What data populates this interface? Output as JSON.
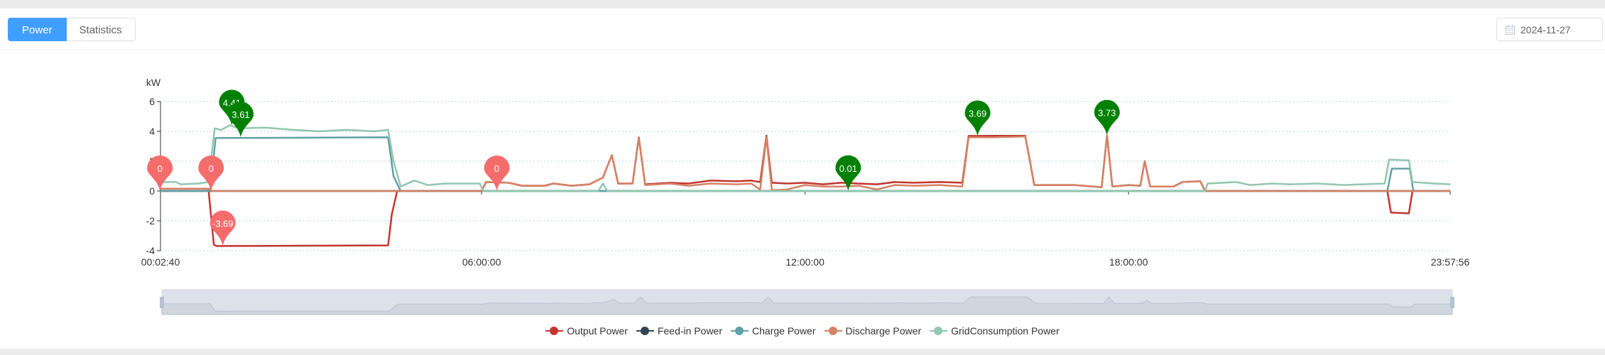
{
  "tabs": [
    {
      "label": "Power",
      "active": true
    },
    {
      "label": "Statistics",
      "active": false
    }
  ],
  "date_picker": {
    "value": "2024-11-27",
    "icon": "calendar-icon"
  },
  "chart_data": {
    "type": "line",
    "ylabel": "kW",
    "ylim": [
      -4,
      6
    ],
    "yticks": [
      6,
      4,
      2,
      0,
      -2,
      -4
    ],
    "xlim": [
      "00:02:40",
      "23:57:56"
    ],
    "xticks": [
      "00:02:40",
      "06:00:00",
      "12:00:00",
      "18:00:00",
      "23:57:56"
    ],
    "grid": true,
    "legend_position": "bottom",
    "data_zoom_slider": true,
    "series": [
      {
        "name": "Output Power",
        "color": "#c23531",
        "points": [
          [
            "00:02",
            0.15
          ],
          [
            "00:56",
            0.15
          ],
          [
            "01:02",
            -3.6
          ],
          [
            "01:05",
            -3.69
          ],
          [
            "04:16",
            -3.65
          ],
          [
            "04:20",
            -1.6
          ],
          [
            "04:26",
            0
          ],
          [
            "06:00",
            0
          ],
          [
            "06:05",
            0.6
          ],
          [
            "06:30",
            0.55
          ],
          [
            "06:45",
            0.35
          ],
          [
            "07:10",
            0.35
          ],
          [
            "07:20",
            0.5
          ],
          [
            "07:40",
            0.35
          ],
          [
            "08:00",
            0.45
          ],
          [
            "08:15",
            0.9
          ],
          [
            "08:25",
            2.4
          ],
          [
            "08:32",
            0.5
          ],
          [
            "08:48",
            0.5
          ],
          [
            "08:55",
            3.6
          ],
          [
            "09:02",
            0.45
          ],
          [
            "09:30",
            0.55
          ],
          [
            "09:50",
            0.5
          ],
          [
            "10:15",
            0.7
          ],
          [
            "10:45",
            0.65
          ],
          [
            "11:00",
            0.7
          ],
          [
            "11:10",
            0.6
          ],
          [
            "11:17",
            3.7
          ],
          [
            "11:23",
            0.55
          ],
          [
            "11:40",
            0.5
          ],
          [
            "12:00",
            0.55
          ],
          [
            "12:20",
            0.45
          ],
          [
            "12:40",
            0.55
          ],
          [
            "13:00",
            0.5
          ],
          [
            "13:20",
            0.45
          ],
          [
            "13:40",
            0.6
          ],
          [
            "14:00",
            0.55
          ],
          [
            "14:30",
            0.6
          ],
          [
            "14:55",
            0.55
          ],
          [
            "15:02",
            3.69
          ],
          [
            "15:30",
            3.7
          ],
          [
            "16:05",
            3.7
          ],
          [
            "16:10",
            2.1
          ],
          [
            "16:15",
            0.4
          ],
          [
            "17:00",
            0.4
          ],
          [
            "17:30",
            0.25
          ],
          [
            "17:36",
            3.73
          ],
          [
            "17:42",
            0.3
          ],
          [
            "18:00",
            0.4
          ],
          [
            "18:13",
            0.35
          ],
          [
            "18:18",
            2.0
          ],
          [
            "18:24",
            0.3
          ],
          [
            "18:50",
            0.3
          ],
          [
            "19:00",
            0.6
          ],
          [
            "19:20",
            0.65
          ],
          [
            "19:25",
            0
          ],
          [
            "22:48",
            0
          ],
          [
            "22:52",
            -1.45
          ],
          [
            "23:12",
            -1.5
          ],
          [
            "23:16",
            0
          ],
          [
            "23:58",
            0
          ]
        ]
      },
      {
        "name": "Feed-in Power",
        "color": "#2f4554",
        "points": [
          [
            "00:02",
            0
          ],
          [
            "23:58",
            0
          ]
        ]
      },
      {
        "name": "Charge Power",
        "color": "#61a0a8",
        "points": [
          [
            "00:02",
            0
          ],
          [
            "00:58",
            0
          ],
          [
            "01:04",
            3.55
          ],
          [
            "04:16",
            3.6
          ],
          [
            "04:22",
            1.0
          ],
          [
            "04:30",
            0
          ],
          [
            "22:48",
            0
          ],
          [
            "22:53",
            1.5
          ],
          [
            "23:13",
            1.5
          ],
          [
            "23:17",
            0
          ],
          [
            "23:58",
            0
          ]
        ]
      },
      {
        "name": "Discharge Power",
        "color": "#d48265",
        "points": [
          [
            "00:02",
            0.15
          ],
          [
            "00:56",
            0.15
          ],
          [
            "01:00",
            0
          ],
          [
            "06:00",
            0
          ],
          [
            "06:05",
            0.6
          ],
          [
            "06:30",
            0.55
          ],
          [
            "06:45",
            0.35
          ],
          [
            "07:10",
            0.35
          ],
          [
            "07:20",
            0.5
          ],
          [
            "07:40",
            0.35
          ],
          [
            "08:00",
            0.45
          ],
          [
            "08:15",
            0.9
          ],
          [
            "08:25",
            2.4
          ],
          [
            "08:32",
            0.5
          ],
          [
            "08:48",
            0.5
          ],
          [
            "08:55",
            3.6
          ],
          [
            "09:02",
            0.4
          ],
          [
            "09:30",
            0.5
          ],
          [
            "09:50",
            0.35
          ],
          [
            "10:15",
            0.5
          ],
          [
            "10:45",
            0.45
          ],
          [
            "11:00",
            0.5
          ],
          [
            "11:10",
            0.1
          ],
          [
            "11:17",
            3.6
          ],
          [
            "11:23",
            0.05
          ],
          [
            "11:40",
            0.1
          ],
          [
            "12:00",
            0.4
          ],
          [
            "12:20",
            0.3
          ],
          [
            "12:40",
            0.3
          ],
          [
            "13:00",
            0.35
          ],
          [
            "13:20",
            0.1
          ],
          [
            "13:40",
            0.4
          ],
          [
            "14:00",
            0.35
          ],
          [
            "14:30",
            0.4
          ],
          [
            "14:55",
            0.3
          ],
          [
            "15:02",
            3.6
          ],
          [
            "15:30",
            3.6
          ],
          [
            "16:05",
            3.65
          ],
          [
            "16:10",
            2.1
          ],
          [
            "16:15",
            0.4
          ],
          [
            "17:00",
            0.4
          ],
          [
            "17:30",
            0.25
          ],
          [
            "17:36",
            3.73
          ],
          [
            "17:42",
            0.3
          ],
          [
            "18:00",
            0.4
          ],
          [
            "18:13",
            0.35
          ],
          [
            "18:18",
            2.0
          ],
          [
            "18:24",
            0.3
          ],
          [
            "18:50",
            0.3
          ],
          [
            "19:00",
            0.6
          ],
          [
            "19:20",
            0.65
          ],
          [
            "19:25",
            0
          ],
          [
            "23:58",
            0
          ]
        ]
      },
      {
        "name": "GridConsumption Power",
        "color": "#91c7ae",
        "points": [
          [
            "00:02",
            0.6
          ],
          [
            "00:20",
            0.6
          ],
          [
            "00:25",
            0.45
          ],
          [
            "00:45",
            0.5
          ],
          [
            "00:56",
            0.6
          ],
          [
            "01:03",
            4.2
          ],
          [
            "01:10",
            4.1
          ],
          [
            "01:20",
            4.41
          ],
          [
            "01:30",
            4.2
          ],
          [
            "02:00",
            4.25
          ],
          [
            "02:30",
            4.1
          ],
          [
            "03:00",
            4.0
          ],
          [
            "03:30",
            4.1
          ],
          [
            "04:00",
            4.0
          ],
          [
            "04:16",
            4.1
          ],
          [
            "04:22",
            2.0
          ],
          [
            "04:30",
            0.3
          ],
          [
            "04:45",
            0.7
          ],
          [
            "05:00",
            0.4
          ],
          [
            "05:20",
            0.5
          ],
          [
            "05:58",
            0.5
          ],
          [
            "06:02",
            0
          ],
          [
            "08:10",
            0
          ],
          [
            "08:15",
            0.5
          ],
          [
            "08:20",
            0
          ],
          [
            "19:25",
            0
          ],
          [
            "19:28",
            0.5
          ],
          [
            "20:00",
            0.6
          ],
          [
            "20:15",
            0.4
          ],
          [
            "20:40",
            0.5
          ],
          [
            "21:00",
            0.45
          ],
          [
            "21:30",
            0.5
          ],
          [
            "22:00",
            0.4
          ],
          [
            "22:45",
            0.5
          ],
          [
            "22:50",
            2.1
          ],
          [
            "23:12",
            2.05
          ],
          [
            "23:16",
            0.6
          ],
          [
            "23:40",
            0.5
          ],
          [
            "23:58",
            0.45
          ]
        ]
      }
    ],
    "markers": [
      {
        "type": "min",
        "time": "00:02",
        "value": 0,
        "label": "0"
      },
      {
        "type": "min",
        "time": "00:59",
        "value": 0,
        "label": "0"
      },
      {
        "type": "min",
        "time": "06:17",
        "value": 0,
        "label": "0"
      },
      {
        "type": "min",
        "time": "01:12",
        "value": -3.69,
        "label": "-3.69"
      },
      {
        "type": "max",
        "time": "01:22",
        "value": 4.41,
        "label": "4.41"
      },
      {
        "type": "max",
        "time": "01:32",
        "value": 3.61,
        "label": "3.61"
      },
      {
        "type": "max",
        "time": "12:48",
        "value": 0.01,
        "label": "0.01"
      },
      {
        "type": "max",
        "time": "15:12",
        "value": 3.69,
        "label": "3.69"
      },
      {
        "type": "max",
        "time": "17:36",
        "value": 3.73,
        "label": "3.73"
      }
    ],
    "marker_colors": {
      "min": "#f56c6c",
      "max": "#008000"
    }
  }
}
